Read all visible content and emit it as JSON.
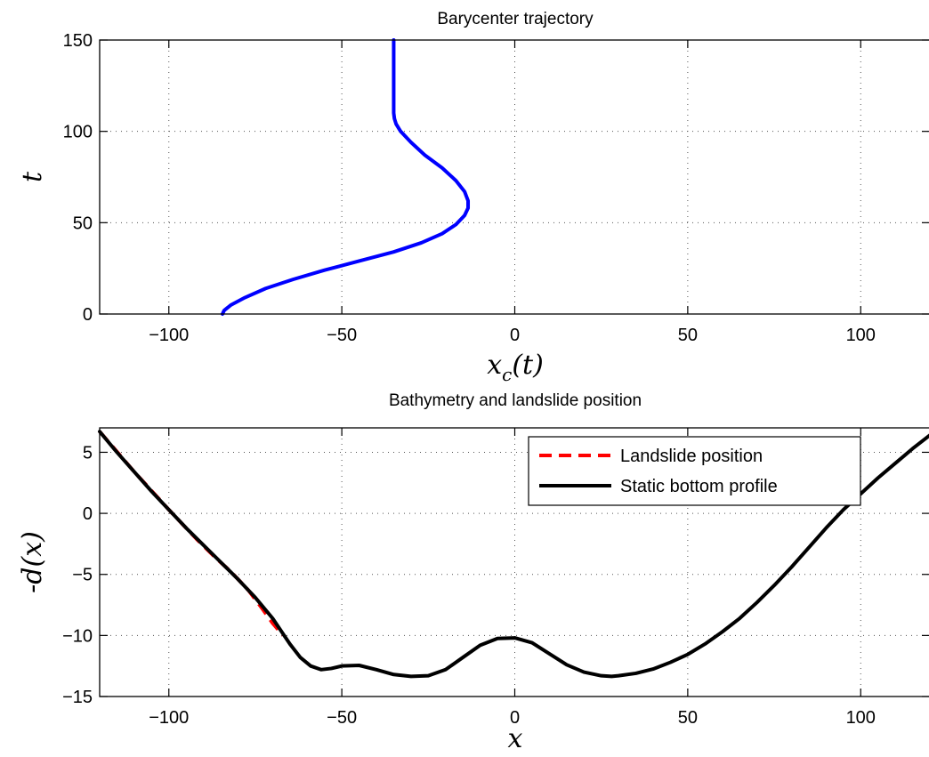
{
  "chart_data": [
    {
      "type": "line",
      "title": "Barycenter trajectory",
      "xlabel_main": "x",
      "xlabel_sub": "c",
      "xlabel_arg": "(t)",
      "ylabel": "t",
      "xlim": [
        -120,
        120
      ],
      "ylim": [
        0,
        150
      ],
      "xticks": [
        -100,
        -50,
        0,
        50,
        100
      ],
      "xtick_labels": [
        "−100",
        "−50",
        "0",
        "50",
        "100"
      ],
      "yticks": [
        0,
        50,
        100,
        150
      ],
      "ytick_labels": [
        "0",
        "50",
        "100",
        "150"
      ],
      "grid": true,
      "series": [
        {
          "color": "#0000ff",
          "x": [
            -84.5,
            -84,
            -82,
            -78,
            -72,
            -64,
            -55,
            -45,
            -35,
            -27,
            -21,
            -17,
            -14.5,
            -13.5,
            -13.5,
            -14.5,
            -17,
            -21,
            -26,
            -30,
            -33,
            -34.3,
            -34.8,
            -35,
            -35,
            -35
          ],
          "y": [
            0,
            2,
            5,
            9,
            14,
            19,
            24,
            29,
            34,
            39,
            44,
            49,
            54,
            58,
            62,
            67,
            73,
            80,
            87,
            94,
            100,
            104,
            107,
            110,
            130,
            150
          ]
        }
      ]
    },
    {
      "type": "line",
      "title": "Bathymetry and landslide position",
      "xlabel": "x",
      "ylabel": "-d(x)",
      "xlim": [
        -120,
        120
      ],
      "ylim": [
        -15,
        7
      ],
      "xticks": [
        -100,
        -50,
        0,
        50,
        100
      ],
      "xtick_labels": [
        "−100",
        "−50",
        "0",
        "50",
        "100"
      ],
      "yticks": [
        -15,
        -10,
        -5,
        0,
        5
      ],
      "ytick_labels": [
        "−15",
        "−10",
        "−5",
        "0",
        "5"
      ],
      "grid": true,
      "legend_position": "top-right",
      "series": [
        {
          "name": "Landslide position",
          "color": "#ff0000",
          "dashed": true,
          "x": [
            -120,
            -110,
            -100,
            -97,
            -92,
            -87,
            -82,
            -77,
            -73,
            -70,
            -67
          ],
          "y": [
            6.7,
            3.4,
            0.3,
            -0.6,
            -2.1,
            -3.5,
            -4.8,
            -6.3,
            -7.8,
            -9.0,
            -10.0
          ]
        },
        {
          "name": "Static bottom profile",
          "color": "#000000",
          "dashed": false,
          "x": [
            -120,
            -115,
            -110,
            -105,
            -100,
            -95,
            -90,
            -85,
            -80,
            -75,
            -70,
            -65,
            -62,
            -59,
            -56,
            -53,
            -50,
            -45,
            -40,
            -35,
            -30,
            -25,
            -20,
            -15,
            -10,
            -5,
            0,
            5,
            10,
            15,
            20,
            25,
            28,
            30,
            35,
            40,
            45,
            50,
            55,
            60,
            65,
            70,
            75,
            80,
            85,
            90,
            95,
            100,
            105,
            110,
            115,
            120
          ],
          "y": [
            6.7,
            5.0,
            3.4,
            1.8,
            0.3,
            -1.2,
            -2.6,
            -4.0,
            -5.4,
            -6.9,
            -8.6,
            -10.7,
            -11.8,
            -12.5,
            -12.8,
            -12.7,
            -12.5,
            -12.45,
            -12.8,
            -13.2,
            -13.35,
            -13.3,
            -12.8,
            -11.8,
            -10.8,
            -10.25,
            -10.2,
            -10.6,
            -11.5,
            -12.4,
            -13.0,
            -13.3,
            -13.35,
            -13.3,
            -13.1,
            -12.75,
            -12.2,
            -11.55,
            -10.7,
            -9.7,
            -8.6,
            -7.3,
            -5.9,
            -4.4,
            -2.8,
            -1.2,
            0.3,
            1.6,
            2.9,
            4.1,
            5.3,
            6.4
          ]
        }
      ]
    }
  ]
}
